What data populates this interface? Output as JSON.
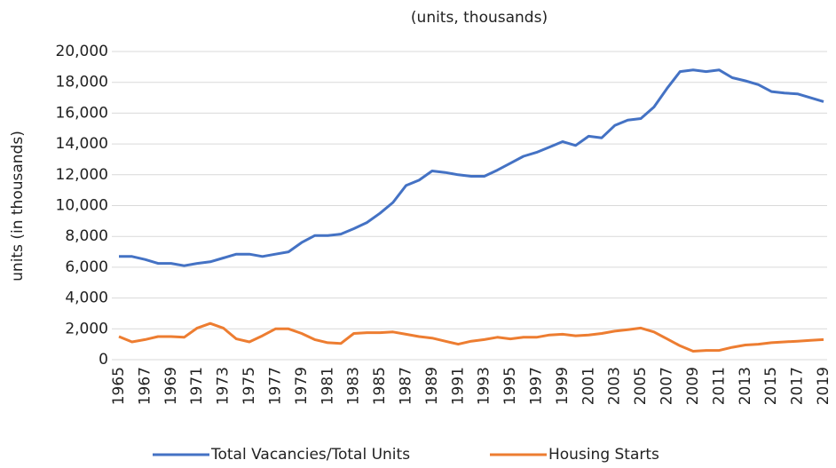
{
  "chart_data": {
    "type": "line",
    "title": "(units, thousands)",
    "y_label": "units (in thousands)",
    "categories": [
      "1965",
      null,
      "1967",
      null,
      "1969",
      null,
      "1971",
      null,
      "1973",
      null,
      "1975",
      null,
      "1977",
      null,
      "1979",
      null,
      "1981",
      null,
      "1983",
      null,
      "1985",
      null,
      "1987",
      null,
      "1989",
      null,
      "1991",
      null,
      "1993",
      null,
      "1995",
      null,
      "1997",
      null,
      "1999",
      null,
      "2001",
      null,
      "2003",
      null,
      "2005",
      null,
      "2007",
      null,
      "2009",
      null,
      "2011",
      null,
      "2013",
      null,
      "2015",
      null,
      "2017",
      null,
      "2019"
    ],
    "series": [
      {
        "name": "Total Vacancies/Total Units",
        "color": "#4472c4",
        "values": [
          6700,
          6700,
          6500,
          6250,
          6250,
          6100,
          6250,
          6350,
          6600,
          6850,
          6850,
          6700,
          6850,
          7000,
          7600,
          8050,
          8050,
          8150,
          8500,
          8900,
          9500,
          10200,
          11300,
          11650,
          12250,
          12150,
          12000,
          11900,
          11900,
          12300,
          12750,
          13200,
          13450,
          13800,
          14150,
          13900,
          14500,
          14400,
          15200,
          15550,
          15650,
          16400,
          17600,
          18700,
          18800,
          18700,
          18800,
          18300,
          18100,
          17850,
          17400,
          17300,
          17250,
          17000,
          16750
        ]
      },
      {
        "name": "Housing Starts",
        "color": "#ed7d31",
        "values": [
          1500,
          1150,
          1300,
          1500,
          1500,
          1450,
          2050,
          2350,
          2050,
          1350,
          1150,
          1550,
          2000,
          2000,
          1700,
          1300,
          1100,
          1050,
          1700,
          1750,
          1750,
          1800,
          1650,
          1500,
          1400,
          1200,
          1000,
          1200,
          1300,
          1450,
          1350,
          1450,
          1450,
          1600,
          1650,
          1550,
          1600,
          1700,
          1850,
          1950,
          2050,
          1800,
          1350,
          900,
          550,
          600,
          600,
          800,
          950,
          1000,
          1100,
          1150,
          1200,
          1250,
          1300
        ]
      }
    ],
    "ylim": [
      0,
      20000
    ],
    "yticks": [
      0,
      {
        "value": 2000,
        "label": "2,000"
      },
      {
        "value": 4000,
        "label": "4,000"
      },
      {
        "value": 6000,
        "label": "6,000"
      },
      {
        "value": 8000,
        "label": "8,000"
      },
      {
        "value": 10000,
        "label": "10,000"
      },
      {
        "value": 12000,
        "label": "12,000"
      },
      {
        "value": 14000,
        "label": "14,000"
      },
      {
        "value": 16000,
        "label": "16,000"
      },
      {
        "value": 18000,
        "label": "18,000"
      },
      {
        "value": 20000,
        "label": "20,000"
      }
    ],
    "grid": true,
    "legend": "bottom"
  }
}
